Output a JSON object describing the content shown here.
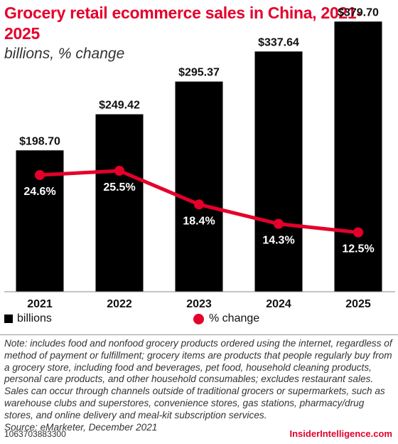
{
  "title": "Grocery retail ecommerce sales in China, 2021-2025",
  "subtitle": "billions, % change",
  "chart_data": {
    "type": "bar",
    "categories": [
      "2021",
      "2022",
      "2023",
      "2024",
      "2025"
    ],
    "series": [
      {
        "name": "billions",
        "type": "bar",
        "values": [
          198.7,
          249.42,
          295.37,
          337.64,
          379.7
        ],
        "labels": [
          "$198.70",
          "$249.42",
          "$295.37",
          "$337.64",
          "$379.70"
        ],
        "color": "#000000",
        "ylim": [
          0,
          400
        ]
      },
      {
        "name": "% change",
        "type": "line",
        "values": [
          24.6,
          25.5,
          18.4,
          14.3,
          12.5
        ],
        "labels": [
          "24.6%",
          "25.5%",
          "18.4%",
          "14.3%",
          "12.5%"
        ],
        "color": "#e4002b",
        "ylim": [
          0,
          60
        ]
      }
    ],
    "legend_position": "bottom-left",
    "grid": false
  },
  "legend": {
    "bars_label": "billions",
    "line_label": "% change"
  },
  "note": "Note: includes food and nonfood grocery products ordered using the internet, regardless of method of payment or fulfillment; grocery items are products that people regularly buy from a grocery store, including food and beverages, pet food, household cleaning products, personal care products, and other household consumables; excludes restaurant sales. Sales can occur through channels outside of traditional grocers or supermarkets, such as warehouse clubs and superstores, convenience stores, gas stations, pharmacy/drug stores, and online delivery and meal-kit subscription services.",
  "source": "Source: eMarketer, December 2021",
  "footer_id": "1063703883300",
  "brand": "InsiderIntelligence.com"
}
